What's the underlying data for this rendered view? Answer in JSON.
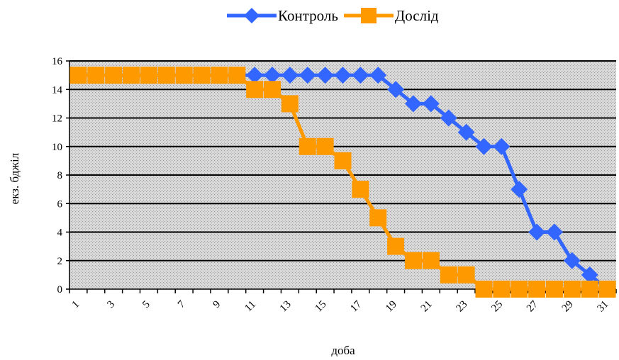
{
  "chart_data": {
    "type": "line",
    "title": "",
    "xlabel": "доба",
    "ylabel": "екз. бджіл",
    "x": [
      1,
      2,
      3,
      4,
      5,
      6,
      7,
      8,
      9,
      10,
      11,
      12,
      13,
      14,
      15,
      16,
      17,
      18,
      19,
      20,
      21,
      22,
      23,
      24,
      25,
      26,
      27,
      28,
      29,
      30,
      31
    ],
    "x_tick_labels": [
      "1",
      "3",
      "5",
      "7",
      "9",
      "11",
      "13",
      "15",
      "17",
      "19",
      "21",
      "23",
      "25",
      "27",
      "29",
      "31"
    ],
    "ylim": [
      0,
      16
    ],
    "y_ticks": [
      0,
      2,
      4,
      6,
      8,
      10,
      12,
      14,
      16
    ],
    "grid": true,
    "legend_position": "top",
    "series": [
      {
        "name": "Контроль",
        "color": "#3366ff",
        "marker": "diamond",
        "values": [
          15,
          15,
          15,
          15,
          15,
          15,
          15,
          15,
          15,
          15,
          15,
          15,
          15,
          15,
          15,
          15,
          15,
          15,
          14,
          13,
          13,
          12,
          11,
          10,
          10,
          7,
          4,
          4,
          2,
          1,
          0
        ]
      },
      {
        "name": "Дослід",
        "color": "#ff9900",
        "marker": "square",
        "values": [
          15,
          15,
          15,
          15,
          15,
          15,
          15,
          15,
          15,
          15,
          14,
          14,
          13,
          10,
          10,
          9,
          7,
          5,
          3,
          2,
          2,
          1,
          1,
          0,
          0,
          0,
          0,
          0,
          0,
          0,
          0
        ]
      }
    ]
  }
}
